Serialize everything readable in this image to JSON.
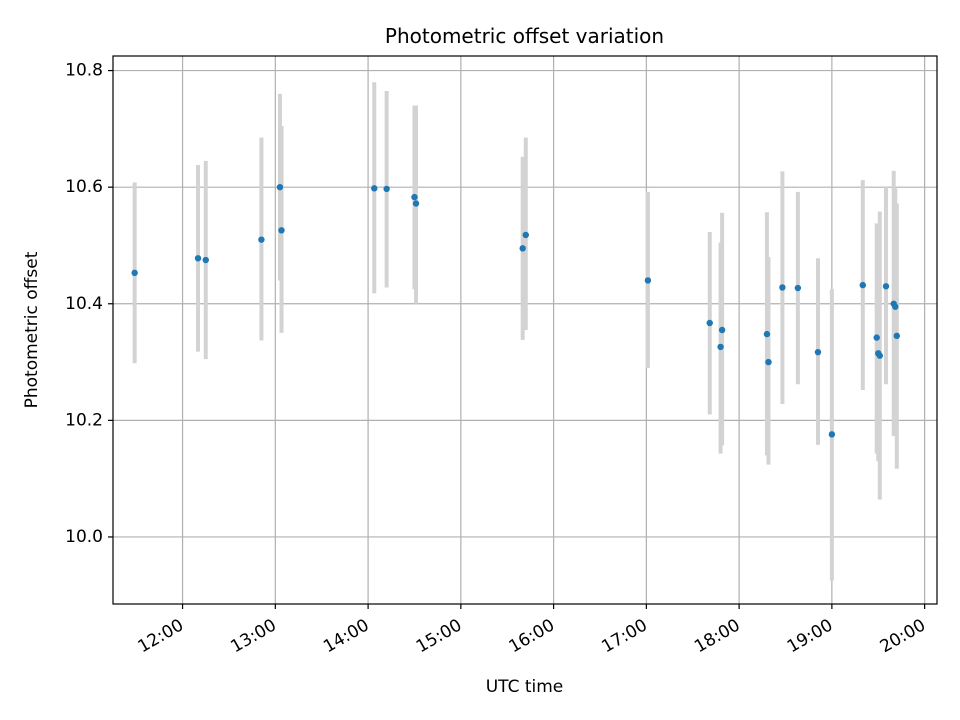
{
  "chart_data": {
    "type": "scatter",
    "title": "Photometric offset variation",
    "xlabel": "UTC time",
    "ylabel": "Photometric offset",
    "x_ticks": [
      "12:00",
      "13:00",
      "14:00",
      "15:00",
      "16:00",
      "17:00",
      "18:00",
      "19:00",
      "20:00"
    ],
    "y_ticks": [
      "10.0",
      "10.2",
      "10.4",
      "10.6",
      "10.8"
    ],
    "xlim": [
      "11:15",
      "20:08"
    ],
    "ylim": [
      9.885,
      10.825
    ],
    "grid": true,
    "colors": {
      "point": "#1f77b4",
      "errorbar": "#d3d3d3",
      "grid": "#b0b0b0"
    },
    "points": [
      {
        "t": "11:29",
        "y": 10.453,
        "lo": 10.298,
        "hi": 10.608
      },
      {
        "t": "12:10",
        "y": 10.478,
        "lo": 10.318,
        "hi": 10.638
      },
      {
        "t": "12:15",
        "y": 10.475,
        "lo": 10.305,
        "hi": 10.645
      },
      {
        "t": "12:51",
        "y": 10.51,
        "lo": 10.337,
        "hi": 10.685
      },
      {
        "t": "13:03",
        "y": 10.6,
        "lo": 10.44,
        "hi": 10.76
      },
      {
        "t": "13:04",
        "y": 10.526,
        "lo": 10.35,
        "hi": 10.705
      },
      {
        "t": "14:04",
        "y": 10.598,
        "lo": 10.418,
        "hi": 10.78
      },
      {
        "t": "14:12",
        "y": 10.597,
        "lo": 10.428,
        "hi": 10.765
      },
      {
        "t": "14:30",
        "y": 10.583,
        "lo": 10.425,
        "hi": 10.74
      },
      {
        "t": "14:31",
        "y": 10.572,
        "lo": 10.4,
        "hi": 10.74
      },
      {
        "t": "15:40",
        "y": 10.495,
        "lo": 10.338,
        "hi": 10.652
      },
      {
        "t": "15:42",
        "y": 10.518,
        "lo": 10.355,
        "hi": 10.685
      },
      {
        "t": "17:01",
        "y": 10.44,
        "lo": 10.29,
        "hi": 10.592
      },
      {
        "t": "17:41",
        "y": 10.367,
        "lo": 10.21,
        "hi": 10.523
      },
      {
        "t": "17:48",
        "y": 10.326,
        "lo": 10.143,
        "hi": 10.505
      },
      {
        "t": "17:49",
        "y": 10.355,
        "lo": 10.157,
        "hi": 10.556
      },
      {
        "t": "18:18",
        "y": 10.348,
        "lo": 10.14,
        "hi": 10.557
      },
      {
        "t": "18:19",
        "y": 10.3,
        "lo": 10.124,
        "hi": 10.48
      },
      {
        "t": "18:28",
        "y": 10.428,
        "lo": 10.228,
        "hi": 10.627
      },
      {
        "t": "18:38",
        "y": 10.427,
        "lo": 10.262,
        "hi": 10.592
      },
      {
        "t": "18:51",
        "y": 10.317,
        "lo": 10.158,
        "hi": 10.478
      },
      {
        "t": "19:00",
        "y": 10.176,
        "lo": 9.925,
        "hi": 10.425
      },
      {
        "t": "19:20",
        "y": 10.432,
        "lo": 10.252,
        "hi": 10.612
      },
      {
        "t": "19:29",
        "y": 10.342,
        "lo": 10.143,
        "hi": 10.538
      },
      {
        "t": "19:30",
        "y": 10.315,
        "lo": 10.13,
        "hi": 10.505
      },
      {
        "t": "19:31",
        "y": 10.311,
        "lo": 10.064,
        "hi": 10.558
      },
      {
        "t": "19:35",
        "y": 10.43,
        "lo": 10.262,
        "hi": 10.6
      },
      {
        "t": "19:40",
        "y": 10.4,
        "lo": 10.173,
        "hi": 10.628
      },
      {
        "t": "19:41",
        "y": 10.395,
        "lo": 10.19,
        "hi": 10.598
      },
      {
        "t": "19:42",
        "y": 10.345,
        "lo": 10.117,
        "hi": 10.572
      }
    ]
  }
}
